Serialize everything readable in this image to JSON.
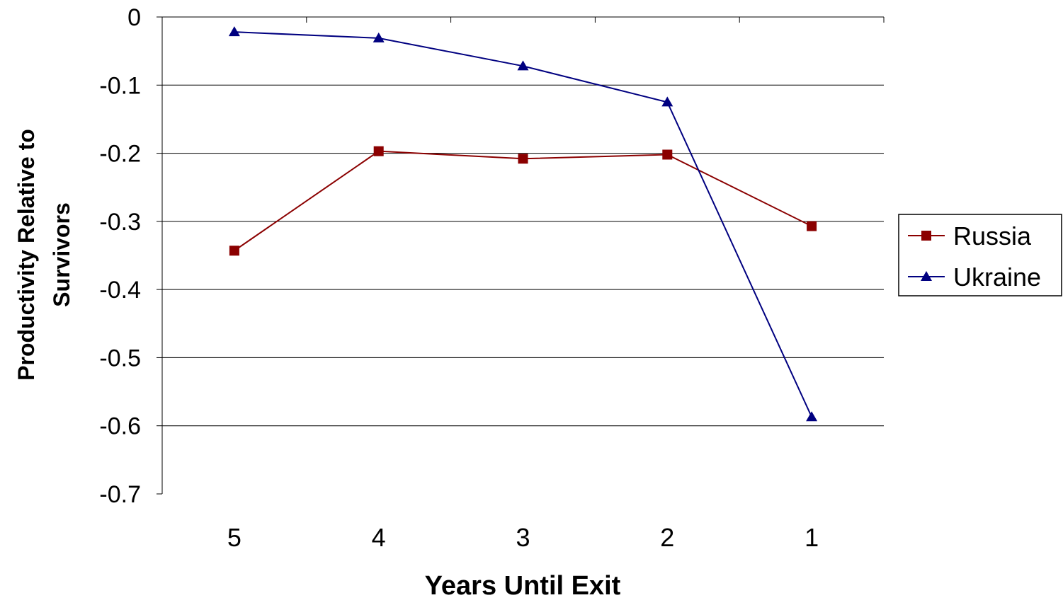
{
  "chart_data": {
    "type": "line",
    "title": "",
    "xlabel": "Years Until Exit",
    "ylabel_line1": "Productivity Relative to",
    "ylabel_line2": "Survivors",
    "ylim": [
      -0.7,
      0
    ],
    "yticks": [
      0,
      -0.1,
      -0.2,
      -0.3,
      -0.4,
      -0.5,
      -0.6,
      -0.7
    ],
    "ytick_labels": [
      "0",
      "-0.1",
      "-0.2",
      "-0.3",
      "-0.4",
      "-0.5",
      "-0.6",
      "-0.7"
    ],
    "categories": [
      "5",
      "4",
      "3",
      "2",
      "1"
    ],
    "grid": true,
    "legend_position": "right",
    "series": [
      {
        "name": "Russia",
        "color": "#8B0000",
        "marker": "square",
        "values": [
          -0.343,
          -0.197,
          -0.208,
          -0.202,
          -0.307
        ]
      },
      {
        "name": "Ukraine",
        "color": "#000080",
        "marker": "triangle",
        "values": [
          -0.022,
          -0.031,
          -0.072,
          -0.125,
          -0.587
        ]
      }
    ]
  }
}
